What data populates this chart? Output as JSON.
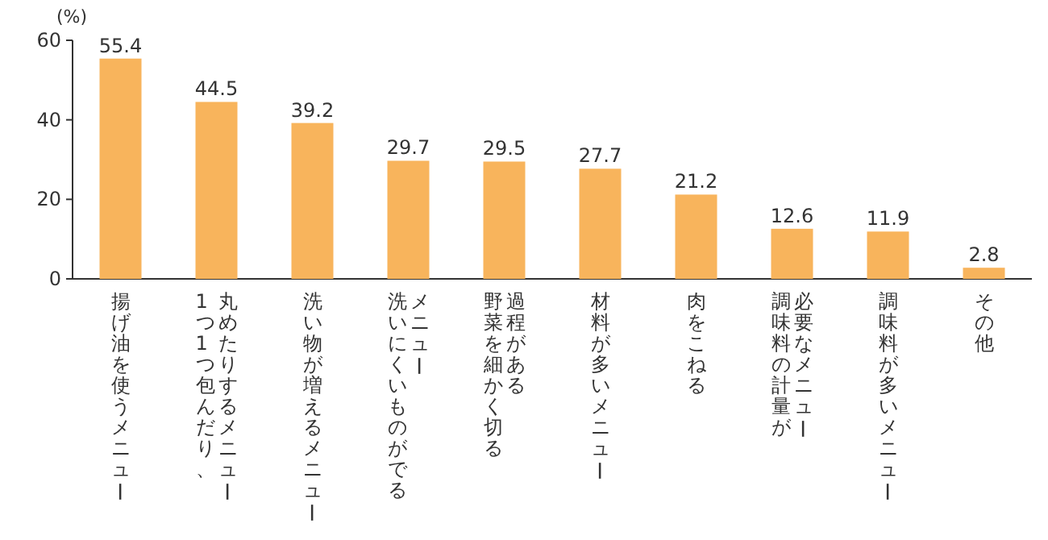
{
  "chart_data": {
    "type": "bar",
    "ylabel": "(%)",
    "categories": [
      "揚げ油を使うメニュー",
      "1つ1つ包んだり、\n丸めたりするメニュー",
      "洗い物が増えるメニュー",
      "洗いにくいものがでる\nメニュー",
      "野菜を細かく切る\n過程がある",
      "材料が多いメニュー",
      "肉をこねる",
      "調味料の計量が\n必要なメニュー",
      "調味料が多いメニュー",
      "その他"
    ],
    "values": [
      55.4,
      44.5,
      39.2,
      29.7,
      29.5,
      27.7,
      21.2,
      12.6,
      11.9,
      2.8
    ],
    "color": "#f8b45c",
    "ylim": [
      0,
      60
    ],
    "yticks": [
      0,
      20,
      40,
      60
    ],
    "data_labels": true,
    "grid": false
  }
}
